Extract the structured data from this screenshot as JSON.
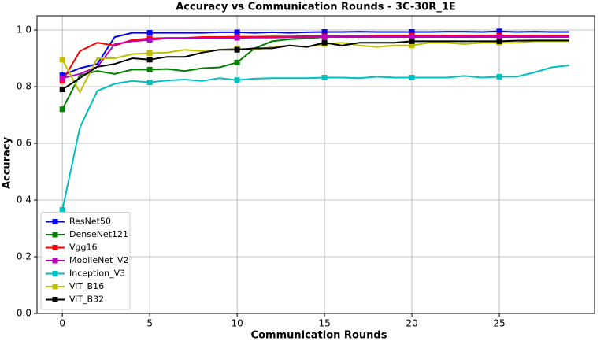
{
  "chart_data": {
    "type": "line",
    "title": "Accuracy vs Communication Rounds - 3C-30R_1E",
    "x_label": "Communication Rounds",
    "y_label": "Accuracy",
    "x": [
      0,
      1,
      2,
      3,
      4,
      5,
      6,
      7,
      8,
      9,
      10,
      11,
      12,
      13,
      14,
      15,
      16,
      17,
      18,
      19,
      20,
      21,
      22,
      23,
      24,
      25,
      26,
      27,
      28,
      29
    ],
    "series": [
      {
        "name": "ResNet50",
        "color": "#0000ff",
        "values": [
          0.84,
          0.865,
          0.88,
          0.975,
          0.99,
          0.99,
          0.99,
          0.99,
          0.99,
          0.992,
          0.992,
          0.99,
          0.992,
          0.99,
          0.992,
          0.993,
          0.993,
          0.994,
          0.993,
          0.993,
          0.993,
          0.993,
          0.994,
          0.994,
          0.993,
          0.995,
          0.993,
          0.994,
          0.993,
          0.993
        ]
      },
      {
        "name": "DenseNet121",
        "color": "#008000",
        "values": [
          0.72,
          0.84,
          0.855,
          0.845,
          0.86,
          0.86,
          0.862,
          0.855,
          0.865,
          0.868,
          0.885,
          0.935,
          0.96,
          0.967,
          0.97,
          0.975,
          0.975,
          0.977,
          0.977,
          0.978,
          0.978,
          0.978,
          0.978,
          0.978,
          0.978,
          0.978,
          0.978,
          0.978,
          0.978,
          0.978
        ]
      },
      {
        "name": "Vgg16",
        "color": "#ff0000",
        "values": [
          0.82,
          0.925,
          0.955,
          0.945,
          0.965,
          0.97,
          0.972,
          0.972,
          0.975,
          0.975,
          0.976,
          0.976,
          0.977,
          0.977,
          0.978,
          0.978,
          0.978,
          0.978,
          0.98,
          0.98,
          0.98,
          0.98,
          0.98,
          0.98,
          0.98,
          0.98,
          0.98,
          0.98,
          0.98,
          0.98
        ]
      },
      {
        "name": "MobileNet_V2",
        "color": "#bf00bf",
        "values": [
          0.83,
          0.845,
          0.87,
          0.95,
          0.96,
          0.965,
          0.97,
          0.97,
          0.972,
          0.972,
          0.972,
          0.973,
          0.973,
          0.974,
          0.974,
          0.975,
          0.975,
          0.975,
          0.975,
          0.975,
          0.975,
          0.975,
          0.975,
          0.975,
          0.975,
          0.975,
          0.975,
          0.975,
          0.975,
          0.975
        ]
      },
      {
        "name": "Inception_V3",
        "color": "#00bfbf",
        "values": [
          0.365,
          0.655,
          0.785,
          0.81,
          0.82,
          0.815,
          0.822,
          0.825,
          0.82,
          0.83,
          0.823,
          0.828,
          0.83,
          0.83,
          0.83,
          0.832,
          0.832,
          0.83,
          0.835,
          0.832,
          0.832,
          0.832,
          0.832,
          0.838,
          0.832,
          0.835,
          0.835,
          0.85,
          0.868,
          0.875
        ]
      },
      {
        "name": "ViT_B16",
        "color": "#bfbf00",
        "values": [
          0.895,
          0.78,
          0.9,
          0.9,
          0.915,
          0.918,
          0.92,
          0.93,
          0.925,
          0.93,
          0.935,
          0.93,
          0.94,
          0.945,
          0.94,
          0.95,
          0.955,
          0.945,
          0.94,
          0.945,
          0.945,
          0.955,
          0.955,
          0.95,
          0.955,
          0.955,
          0.955,
          0.96,
          0.96,
          0.96
        ]
      },
      {
        "name": "ViT_B32",
        "color": "#000000",
        "values": [
          0.79,
          0.83,
          0.87,
          0.88,
          0.9,
          0.895,
          0.905,
          0.905,
          0.92,
          0.93,
          0.93,
          0.935,
          0.935,
          0.945,
          0.94,
          0.955,
          0.945,
          0.955,
          0.955,
          0.955,
          0.96,
          0.96,
          0.96,
          0.96,
          0.96,
          0.96,
          0.962,
          0.963,
          0.963,
          0.963
        ]
      }
    ],
    "xlim": [
      -1.45,
      30.45
    ],
    "ylim": [
      0,
      1.05
    ],
    "xticks": [
      0,
      5,
      10,
      15,
      20,
      25
    ],
    "yticks": [
      {
        "value": 0,
        "label": "0.0"
      },
      0.2,
      0.4,
      0.6,
      0.8,
      {
        "value": 1,
        "label": "1.0"
      }
    ],
    "grid": true,
    "legend": "lower left",
    "marker_every": 5
  }
}
